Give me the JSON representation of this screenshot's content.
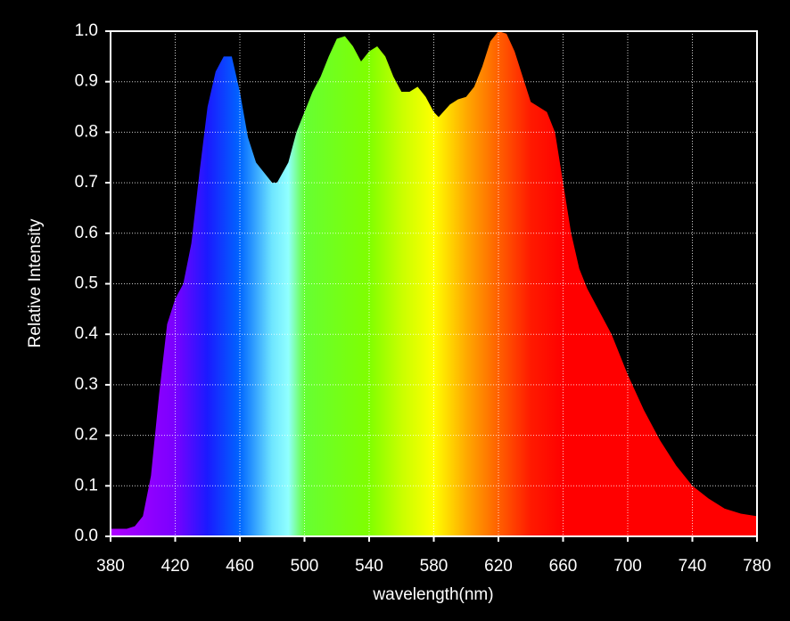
{
  "chart_data": {
    "type": "area",
    "xlabel": "wavelength(nm)",
    "ylabel": "Relative Intensity",
    "x": [
      380,
      390,
      395,
      400,
      405,
      410,
      415,
      420,
      425,
      430,
      435,
      440,
      445,
      450,
      455,
      460,
      465,
      470,
      475,
      480,
      483,
      490,
      495,
      500,
      505,
      510,
      515,
      520,
      525,
      530,
      535,
      540,
      545,
      550,
      555,
      560,
      565,
      570,
      575,
      580,
      583,
      590,
      595,
      600,
      605,
      610,
      615,
      620,
      625,
      630,
      635,
      640,
      645,
      650,
      655,
      660,
      665,
      670,
      675,
      680,
      690,
      700,
      710,
      720,
      730,
      740,
      750,
      760,
      770,
      780
    ],
    "y": [
      0.015,
      0.015,
      0.02,
      0.04,
      0.12,
      0.28,
      0.42,
      0.47,
      0.5,
      0.58,
      0.72,
      0.85,
      0.92,
      0.95,
      0.95,
      0.88,
      0.79,
      0.74,
      0.72,
      0.7,
      0.7,
      0.74,
      0.8,
      0.84,
      0.88,
      0.91,
      0.95,
      0.985,
      0.99,
      0.97,
      0.94,
      0.96,
      0.97,
      0.95,
      0.91,
      0.88,
      0.88,
      0.89,
      0.87,
      0.84,
      0.83,
      0.855,
      0.865,
      0.87,
      0.89,
      0.93,
      0.98,
      1.0,
      0.995,
      0.96,
      0.91,
      0.86,
      0.85,
      0.84,
      0.8,
      0.7,
      0.6,
      0.53,
      0.49,
      0.46,
      0.4,
      0.32,
      0.25,
      0.19,
      0.14,
      0.1,
      0.075,
      0.055,
      0.045,
      0.04
    ],
    "fill_gradient": [
      {
        "x": 380,
        "color": "#b000ff"
      },
      {
        "x": 420,
        "color": "#7a00ff"
      },
      {
        "x": 440,
        "color": "#1a1aff"
      },
      {
        "x": 460,
        "color": "#0066ff"
      },
      {
        "x": 480,
        "color": "#6fe6ff"
      },
      {
        "x": 490,
        "color": "#90ffff"
      },
      {
        "x": 500,
        "color": "#66ff33"
      },
      {
        "x": 540,
        "color": "#80ff00"
      },
      {
        "x": 560,
        "color": "#c8ff00"
      },
      {
        "x": 580,
        "color": "#ffff00"
      },
      {
        "x": 600,
        "color": "#ffaa00"
      },
      {
        "x": 620,
        "color": "#ff6000"
      },
      {
        "x": 640,
        "color": "#ff1a00"
      },
      {
        "x": 660,
        "color": "#ff0000"
      },
      {
        "x": 780,
        "color": "#ff0000"
      }
    ],
    "xlim": [
      380,
      780
    ],
    "xticks": [
      380,
      420,
      460,
      500,
      540,
      580,
      620,
      660,
      700,
      740,
      780
    ],
    "ylim": [
      0,
      1
    ],
    "yticks": [
      {
        "value": 0,
        "label": "0.0"
      },
      0.1,
      0.2,
      0.3,
      0.4,
      0.5,
      0.6,
      0.7,
      0.8,
      0.9,
      {
        "value": 1,
        "label": "1.0"
      }
    ],
    "grid": true
  }
}
